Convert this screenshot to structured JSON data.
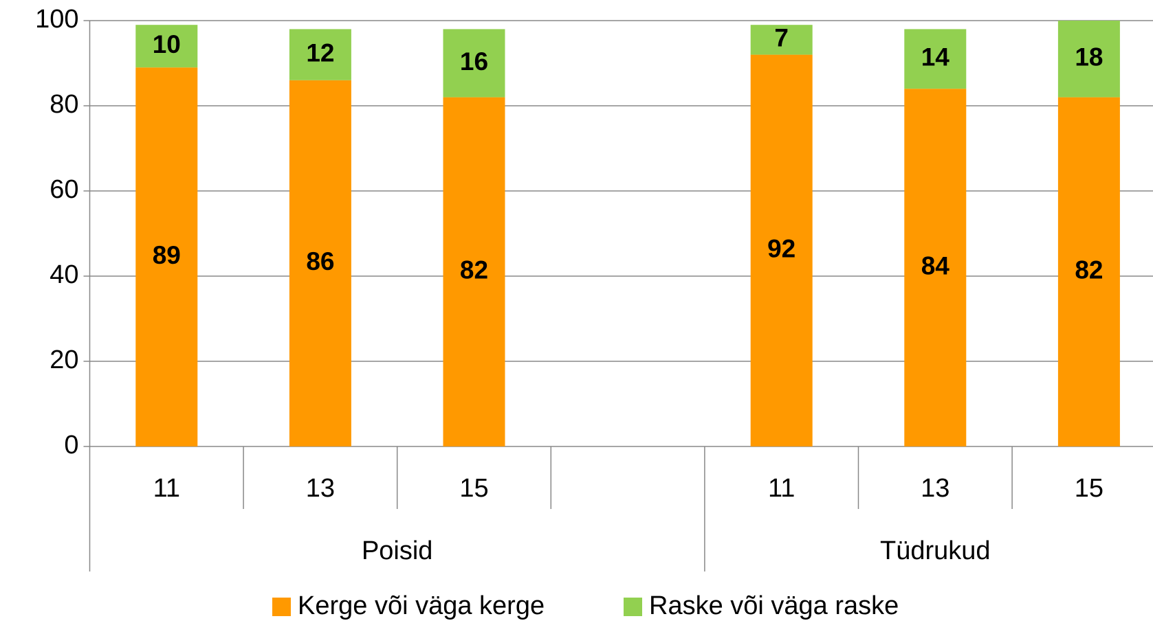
{
  "chart_data": {
    "type": "stacked_bar",
    "categories": [
      "11",
      "13",
      "15",
      null,
      "11",
      "13",
      "15"
    ],
    "group_labels": [
      "Poisid",
      "Tüdrukud"
    ],
    "series": [
      {
        "name": "Kerge või väga kerge",
        "color": "#ff9900",
        "values": [
          89,
          86,
          82,
          null,
          92,
          84,
          82
        ]
      },
      {
        "name": "Raske või väga raske",
        "color": "#92d050",
        "values": [
          10,
          12,
          16,
          null,
          7,
          14,
          18
        ]
      }
    ],
    "ylim": [
      0,
      100
    ],
    "yticks": [
      0,
      20,
      40,
      60,
      80,
      100
    ],
    "grid": true,
    "legend": "bottom"
  }
}
